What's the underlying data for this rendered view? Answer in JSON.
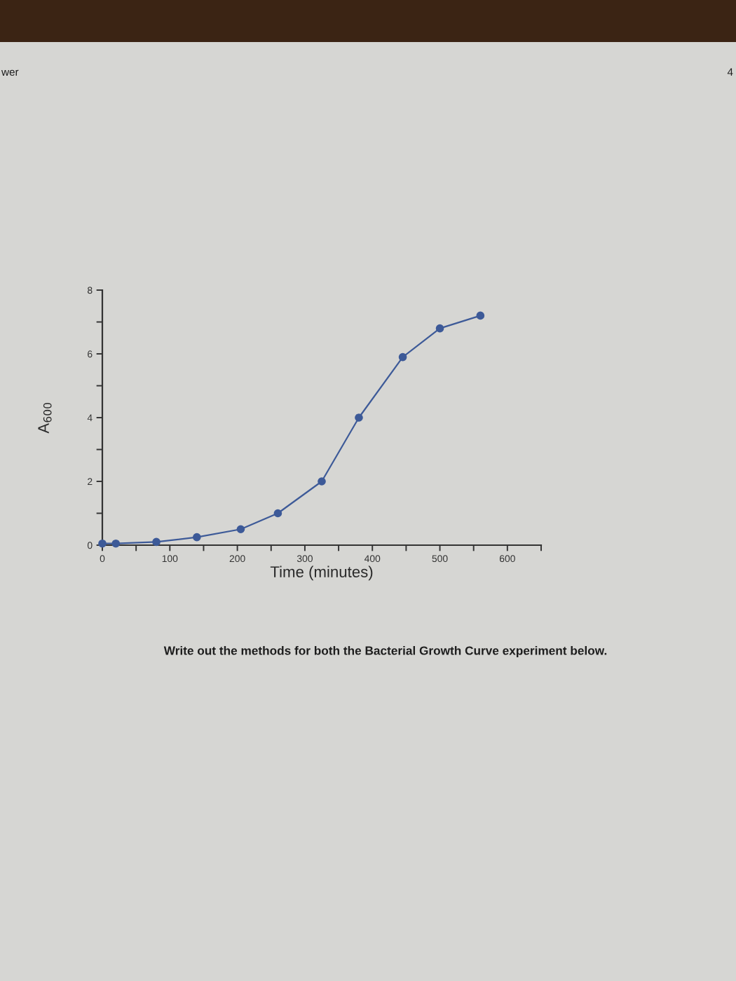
{
  "chart_data": {
    "type": "line",
    "xlabel": "Time (minutes)",
    "ylabel": "A$_{600}$",
    "x": [
      0,
      20,
      80,
      140,
      205,
      260,
      325,
      380,
      445,
      500,
      560
    ],
    "series": [
      {
        "color": "#3d5a98",
        "values": [
          0.05,
          0.05,
          0.1,
          0.25,
          0.5,
          1.0,
          2.0,
          4.0,
          5.9,
          6.8,
          7.2
        ]
      }
    ],
    "xlim": [
      0,
      650
    ],
    "ylim": [
      0,
      8
    ],
    "xticks": [
      0,
      {
        "value": 50,
        "label": null
      },
      100,
      {
        "value": 150,
        "label": null
      },
      200,
      {
        "value": 250,
        "label": null
      },
      300,
      {
        "value": 350,
        "label": null
      },
      400,
      {
        "value": 450,
        "label": null
      },
      500,
      {
        "value": 550,
        "label": null
      },
      600,
      {
        "value": 650,
        "label": null
      }
    ],
    "yticks": [
      0,
      {
        "value": 1,
        "label": null
      },
      2,
      {
        "value": 3,
        "label": null
      },
      4,
      {
        "value": 5,
        "label": null
      },
      6,
      {
        "value": 7,
        "label": null
      },
      8
    ],
    "marker": "circle",
    "line_style": "solid",
    "annotations": [
      "wer",
      "4",
      "Write out the methods for both the Bacterial Growth Curve experiment below."
    ]
  }
}
